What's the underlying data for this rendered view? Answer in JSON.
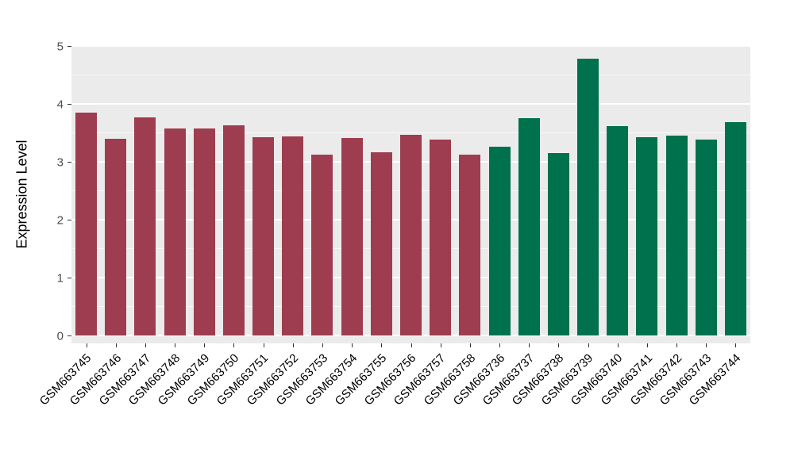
{
  "chart_data": {
    "type": "bar",
    "title": "",
    "xlabel": "",
    "ylabel": "Expression Level",
    "ylim": [
      0,
      5
    ],
    "yticks": [
      0,
      1,
      2,
      3,
      4,
      5
    ],
    "grid": "white major and minor gridlines on gray panel",
    "legend_position": "none",
    "panel_background": "#EBEBEB",
    "colors": {
      "group1": "#9E3D4F",
      "group2": "#00714D"
    },
    "categories": [
      "GSM663745",
      "GSM663746",
      "GSM663747",
      "GSM663748",
      "GSM663749",
      "GSM663750",
      "GSM663751",
      "GSM663752",
      "GSM663753",
      "GSM663754",
      "GSM663755",
      "GSM663756",
      "GSM663757",
      "GSM663758",
      "GSM663736",
      "GSM663737",
      "GSM663738",
      "GSM663739",
      "GSM663740",
      "GSM663741",
      "GSM663742",
      "GSM663743",
      "GSM663744"
    ],
    "values": [
      3.85,
      3.4,
      3.77,
      3.58,
      3.58,
      3.63,
      3.43,
      3.44,
      3.12,
      3.41,
      3.17,
      3.46,
      3.38,
      3.13,
      3.26,
      3.75,
      3.15,
      4.78,
      3.62,
      3.43,
      3.45,
      3.38,
      3.69
    ],
    "bar_groups": [
      "group1",
      "group1",
      "group1",
      "group1",
      "group1",
      "group1",
      "group1",
      "group1",
      "group1",
      "group1",
      "group1",
      "group1",
      "group1",
      "group1",
      "group2",
      "group2",
      "group2",
      "group2",
      "group2",
      "group2",
      "group2",
      "group2",
      "group2"
    ]
  }
}
